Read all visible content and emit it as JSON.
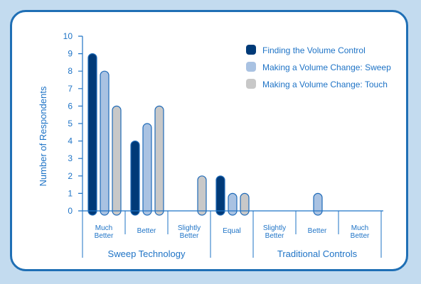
{
  "chart_data": {
    "type": "bar",
    "title": "",
    "xlabel": "",
    "ylabel": "Number of Respondents",
    "ylim": [
      0,
      10
    ],
    "yticks": [
      0,
      1,
      2,
      3,
      4,
      5,
      6,
      7,
      8,
      9,
      10
    ],
    "grid": false,
    "legend_position": "top-right",
    "categories": [
      [
        "Much",
        "Better"
      ],
      [
        "Better"
      ],
      [
        "Slightly",
        "Better"
      ],
      [
        "Equal"
      ],
      [
        "Slightly",
        "Better"
      ],
      [
        "Better"
      ],
      [
        "Much",
        "Better"
      ]
    ],
    "category_groups": [
      {
        "label": "Sweep Technology",
        "start": 0,
        "end": 2
      },
      {
        "label": "Traditional Controls",
        "start": 4,
        "end": 6
      }
    ],
    "series": [
      {
        "name": "Finding the Volume Control",
        "color": "#003a78",
        "values": [
          9,
          4,
          0,
          2,
          0,
          0,
          0
        ]
      },
      {
        "name": "Making a Volume Change: Sweep",
        "color": "#a9c2e2",
        "values": [
          8,
          5,
          0,
          1,
          0,
          1,
          0
        ]
      },
      {
        "name": "Making a Volume Change: Touch",
        "color": "#c8c8c8",
        "values": [
          6,
          6,
          2,
          1,
          0,
          0,
          0
        ]
      }
    ]
  }
}
